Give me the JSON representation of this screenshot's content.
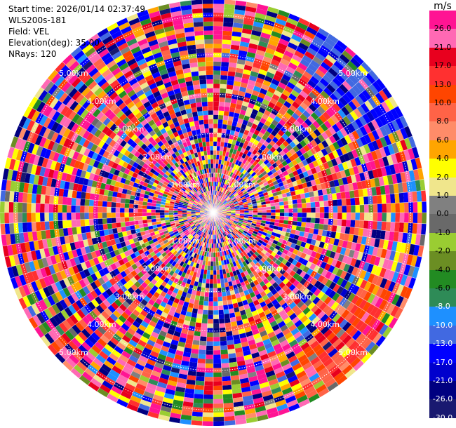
{
  "info": {
    "start_time": "Start time: 2026/01/14 02:37:49",
    "instrument": "WLS200s-181",
    "field": "Field: VEL",
    "elevation": "Elevation(deg): 35.00",
    "nrays": "NRays: 120"
  },
  "chart_data": {
    "type": "heatmap",
    "projection": "polar-ppi",
    "field": "VEL",
    "units": "m/s",
    "n_rays": 120,
    "elevation_deg": 35.0,
    "max_range_km": 5.4,
    "range_rings_km": [
      1.0,
      2.0,
      3.0,
      4.0,
      5.0
    ],
    "range_ring_labels": [
      "1.00km",
      "2.00km",
      "3.00km",
      "4.00km",
      "5.00km"
    ],
    "colorbar": {
      "title": "m/s",
      "tick_labels": [
        "26.0",
        "21.0",
        "17.0",
        "13.0",
        "10.0",
        "8.0",
        "6.0",
        "4.0",
        "2.0",
        "1.0",
        "0.0",
        "-1.0",
        "-2.0",
        "-4.0",
        "-6.0",
        "-8.0",
        "-10.0",
        "-13.0",
        "-17.0",
        "-21.0",
        "-26.0",
        "-30.0"
      ],
      "colors": [
        "#ff1493",
        "#ff69b4",
        "#e8001e",
        "#ff3030",
        "#ff4500",
        "#ff6347",
        "#ff8c69",
        "#ffa500",
        "#ffff00",
        "#f0e68c",
        "#808080",
        "#696969",
        "#9acd32",
        "#6b8e23",
        "#228b22",
        "#2e8b57",
        "#1e90ff",
        "#4169e1",
        "#0000ff",
        "#0000cd",
        "#000080",
        "#191970"
      ]
    }
  }
}
